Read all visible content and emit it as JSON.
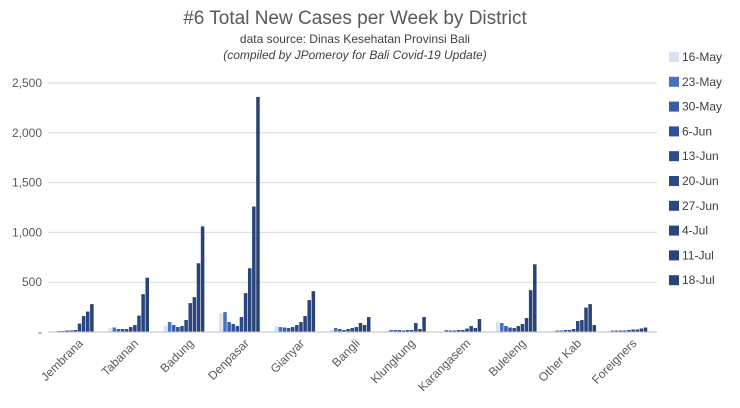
{
  "chart_data": {
    "type": "bar",
    "title": "#6 Total New Cases per Week by District",
    "subtitle": "data source:  Dinas Kesehatan Provinsi Bali",
    "note": "(compiled by JPomeroy for Bali Covid-19 Update)",
    "xlabel": "",
    "ylabel": "",
    "ylim": [
      0,
      2500
    ],
    "yticks": [
      "-",
      "500",
      "1,000",
      "1,500",
      "2,000",
      "2,500"
    ],
    "grid": true,
    "legend_position": "right",
    "categories": [
      "Jembrana",
      "Tabanan",
      "Badung",
      "Denpasar",
      "Gianyar",
      "Bangli",
      "Klungkung",
      "Karangasem",
      "Buleleng",
      "Other Kab",
      "Foreigners"
    ],
    "series": [
      {
        "name": "16-May",
        "color": "#d9e1f2",
        "values": [
          5,
          40,
          60,
          190,
          60,
          20,
          10,
          5,
          100,
          10,
          10
        ]
      },
      {
        "name": "23-May",
        "color": "#4472c4",
        "values": [
          10,
          45,
          100,
          200,
          50,
          40,
          20,
          20,
          90,
          15,
          15
        ]
      },
      {
        "name": "30-May",
        "color": "#3a5ca8",
        "values": [
          10,
          30,
          70,
          100,
          45,
          30,
          20,
          15,
          60,
          15,
          15
        ]
      },
      {
        "name": "6-Jun",
        "color": "#32509a",
        "values": [
          15,
          30,
          50,
          80,
          40,
          20,
          20,
          15,
          45,
          20,
          15
        ]
      },
      {
        "name": "13-Jun",
        "color": "#2e4b8f",
        "values": [
          15,
          30,
          60,
          60,
          50,
          30,
          15,
          20,
          40,
          20,
          15
        ]
      },
      {
        "name": "20-Jun",
        "color": "#2c4885",
        "values": [
          20,
          50,
          120,
          150,
          70,
          40,
          20,
          20,
          60,
          30,
          20
        ]
      },
      {
        "name": "27-Jun",
        "color": "#2b4780",
        "values": [
          85,
          70,
          290,
          390,
          100,
          50,
          20,
          35,
          80,
          110,
          25
        ]
      },
      {
        "name": "4-Jul",
        "color": "#2a457d",
        "values": [
          160,
          165,
          350,
          640,
          160,
          90,
          90,
          60,
          140,
          120,
          25
        ]
      },
      {
        "name": "11-Jul",
        "color": "#29447a",
        "values": [
          205,
          380,
          690,
          1260,
          320,
          70,
          30,
          40,
          420,
          245,
          35
        ]
      },
      {
        "name": "18-Jul",
        "color": "#284377",
        "values": [
          280,
          545,
          1060,
          2360,
          410,
          150,
          150,
          130,
          680,
          280,
          45
        ]
      }
    ],
    "extra_bars": [
      {
        "category": "Other Kab",
        "value": 70,
        "color": "#284377"
      }
    ]
  }
}
